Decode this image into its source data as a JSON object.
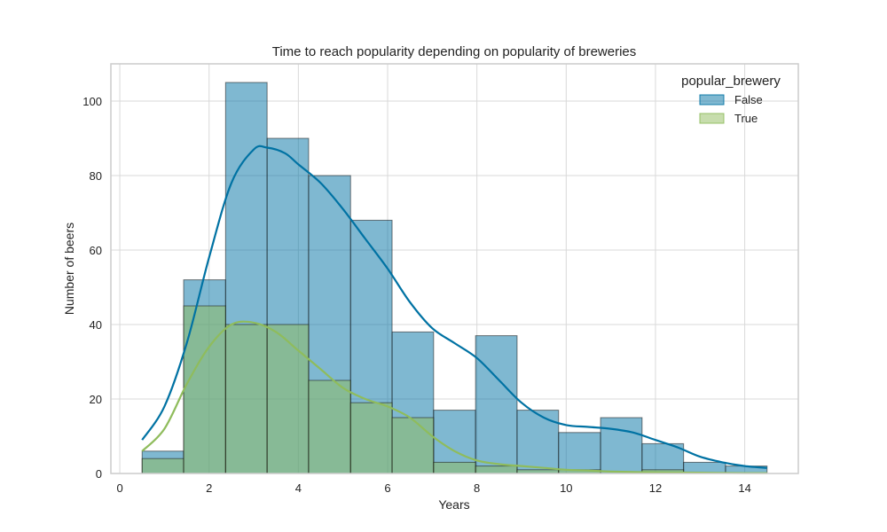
{
  "chart_data": {
    "type": "bar",
    "title": "Time to reach popularity depending on popularity of breweries",
    "xlabel": "Years",
    "ylabel": "Number of beers",
    "xlim": [
      -0.2,
      15.2
    ],
    "ylim": [
      0,
      110
    ],
    "x_ticks": [
      0,
      2,
      4,
      6,
      8,
      10,
      12,
      14
    ],
    "y_ticks": [
      0,
      20,
      40,
      60,
      80,
      100
    ],
    "grid": true,
    "legend_title": "popular_brewery",
    "legend_position": "top-right",
    "bin_edges": [
      0.5,
      1.43,
      2.37,
      3.3,
      4.23,
      5.17,
      6.1,
      7.03,
      7.97,
      8.9,
      9.83,
      10.77,
      11.7,
      12.63,
      13.57,
      14.5
    ],
    "series": [
      {
        "name": "False",
        "color": "#0072a3",
        "values": [
          6,
          52,
          105,
          90,
          80,
          68,
          38,
          17,
          37,
          17,
          11,
          15,
          8,
          3,
          2
        ],
        "kde": [
          [
            0.5,
            9
          ],
          [
            1.0,
            18
          ],
          [
            1.5,
            35
          ],
          [
            2.0,
            58
          ],
          [
            2.5,
            78
          ],
          [
            3.0,
            87
          ],
          [
            3.3,
            87.5
          ],
          [
            3.7,
            86
          ],
          [
            4.0,
            83
          ],
          [
            4.5,
            78
          ],
          [
            5.0,
            71
          ],
          [
            5.5,
            63
          ],
          [
            6.0,
            55
          ],
          [
            6.5,
            46
          ],
          [
            7.0,
            39
          ],
          [
            7.5,
            35
          ],
          [
            8.0,
            31
          ],
          [
            8.5,
            25
          ],
          [
            9.0,
            19
          ],
          [
            9.5,
            15
          ],
          [
            10.0,
            13
          ],
          [
            10.5,
            12.5
          ],
          [
            11.0,
            12
          ],
          [
            11.5,
            11
          ],
          [
            12.0,
            9
          ],
          [
            12.5,
            7
          ],
          [
            13.0,
            4.5
          ],
          [
            13.5,
            3
          ],
          [
            14.0,
            2
          ],
          [
            14.5,
            1.5
          ]
        ]
      },
      {
        "name": "True",
        "color": "#8fbc5c",
        "values": [
          4,
          45,
          40,
          40,
          25,
          19,
          15,
          3,
          2,
          1,
          1,
          0,
          1,
          0,
          0
        ],
        "kde": [
          [
            0.5,
            6
          ],
          [
            1.0,
            12
          ],
          [
            1.5,
            24
          ],
          [
            2.0,
            34
          ],
          [
            2.5,
            40
          ],
          [
            3.0,
            40.5
          ],
          [
            3.5,
            38
          ],
          [
            4.0,
            33
          ],
          [
            4.5,
            28
          ],
          [
            5.0,
            23
          ],
          [
            5.5,
            20
          ],
          [
            6.0,
            18
          ],
          [
            6.5,
            15
          ],
          [
            7.0,
            10
          ],
          [
            7.5,
            6
          ],
          [
            8.0,
            3.5
          ],
          [
            8.5,
            2.5
          ],
          [
            9.0,
            2
          ],
          [
            9.5,
            1.5
          ],
          [
            10.0,
            1
          ],
          [
            10.5,
            0.8
          ],
          [
            11.0,
            0.5
          ],
          [
            12.0,
            0.3
          ],
          [
            13.0,
            0.2
          ],
          [
            14.0,
            0.1
          ],
          [
            14.5,
            0.1
          ]
        ]
      }
    ]
  }
}
